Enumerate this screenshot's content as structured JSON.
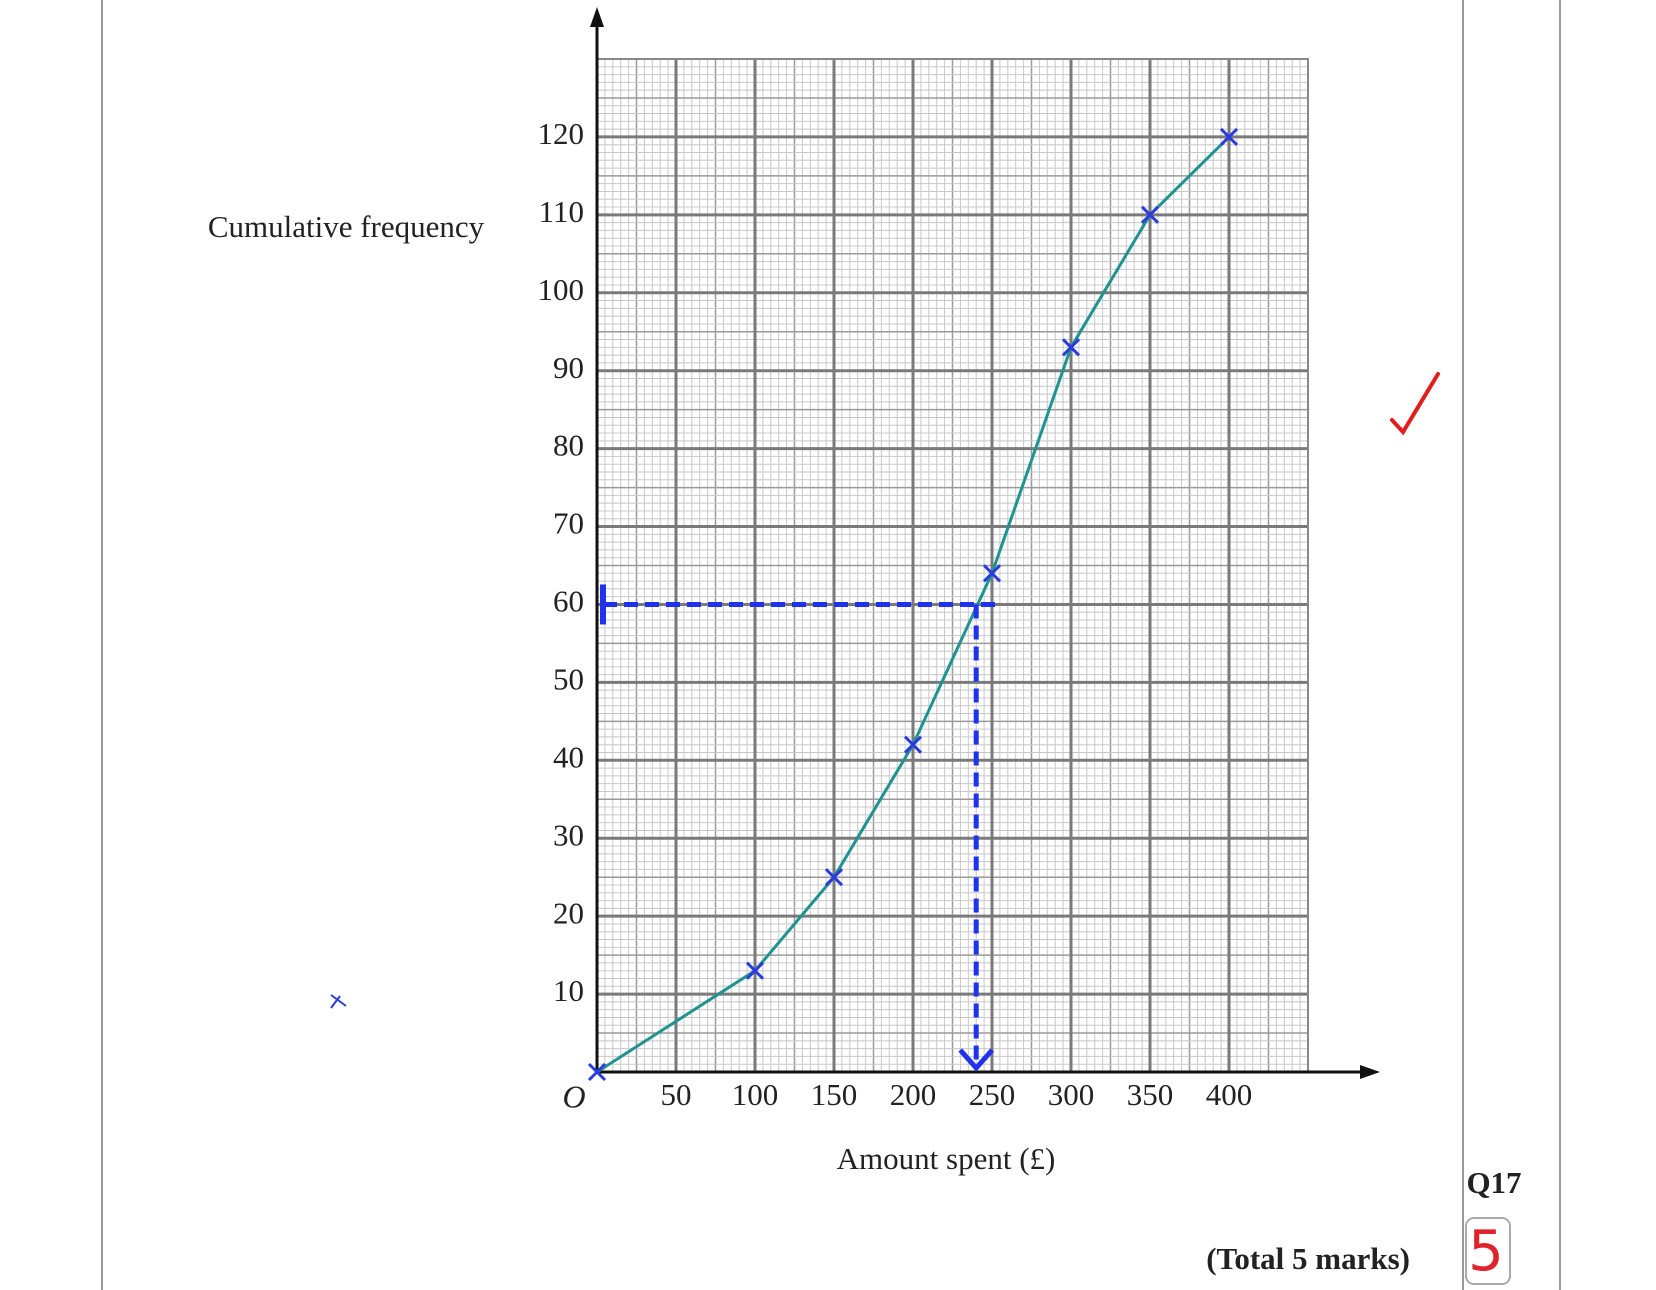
{
  "chart_data": {
    "type": "line",
    "x_label": "Amount spent (£)",
    "y_label": "Cumulative frequency",
    "origin_label": "O",
    "x": [
      0,
      100,
      150,
      200,
      250,
      300,
      350,
      400
    ],
    "values": [
      0,
      13,
      25,
      42,
      64,
      93,
      110,
      120
    ],
    "color": "#1e9390",
    "marker_color": "#2a3ce0",
    "xlim": [
      0,
      450
    ],
    "ylim": [
      0,
      130
    ],
    "xticks": [
      50,
      100,
      150,
      200,
      250,
      300,
      350,
      400
    ],
    "yticks": [
      10,
      20,
      30,
      40,
      50,
      60,
      70,
      80,
      90,
      100,
      110,
      120
    ],
    "grid": true,
    "reading": {
      "y": 60,
      "x": 240,
      "color": "#1f32ee"
    }
  },
  "question": "Q17",
  "total": "(Total 5 marks)",
  "score": "5"
}
